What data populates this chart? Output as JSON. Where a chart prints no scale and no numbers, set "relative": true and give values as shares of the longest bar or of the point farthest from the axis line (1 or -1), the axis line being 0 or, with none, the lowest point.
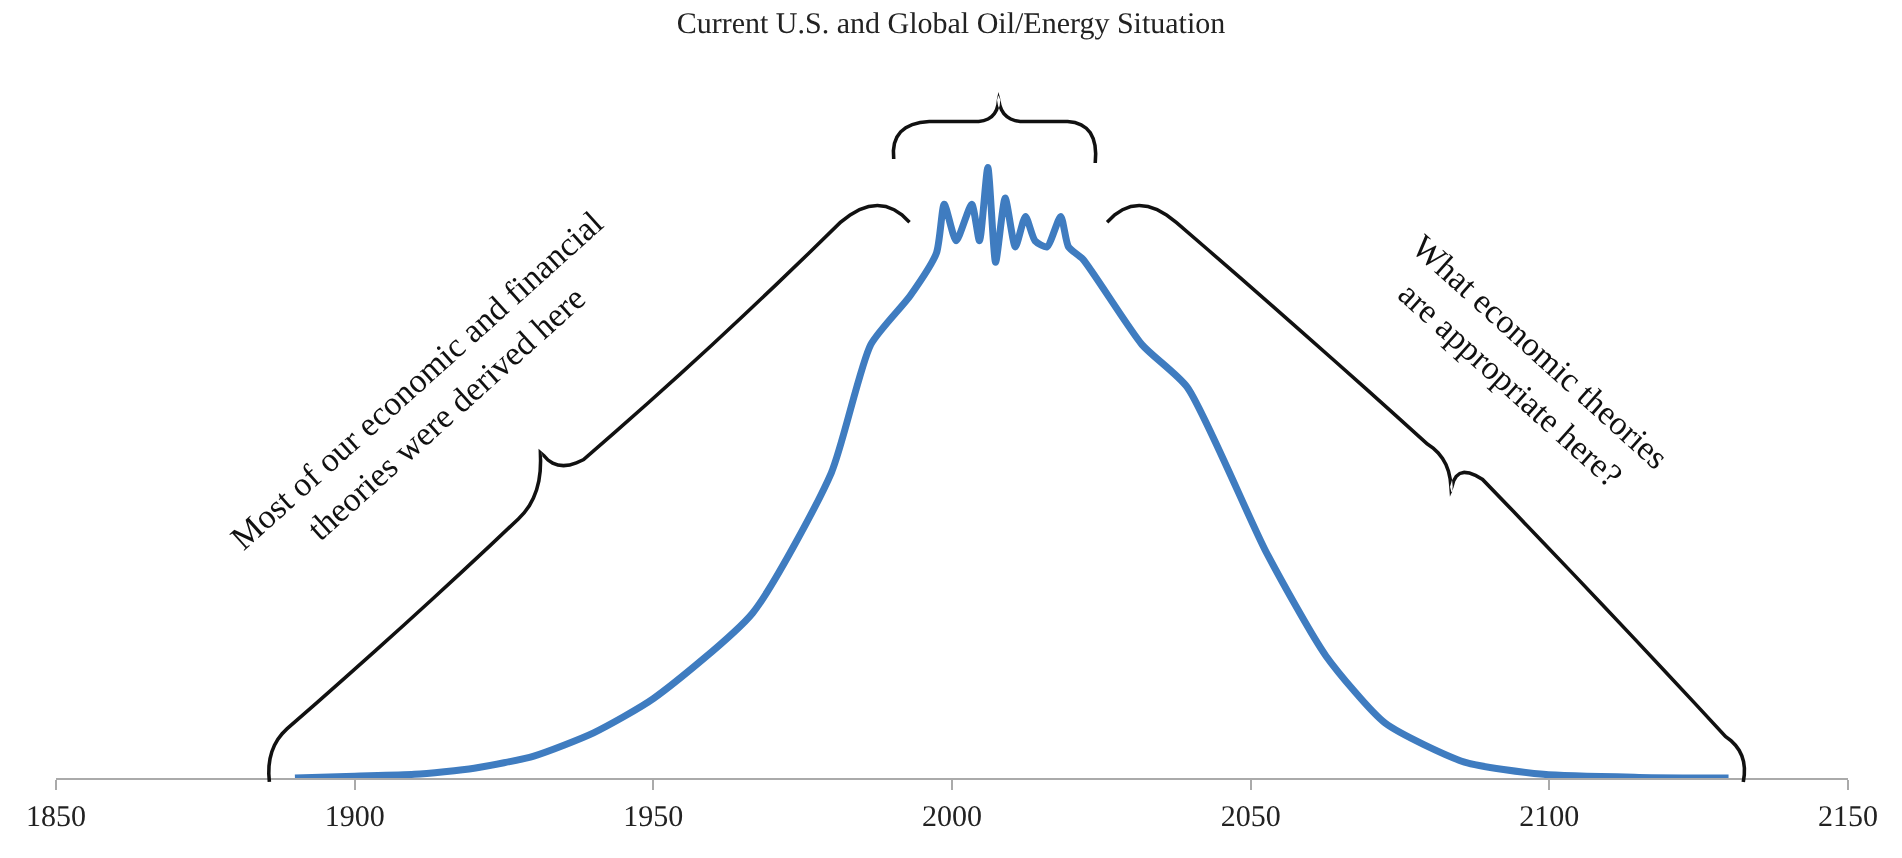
{
  "chart_data": {
    "type": "line",
    "title": "Current U.S. and Global Oil/Energy Situation",
    "relative": true,
    "color": "#3f7cc0",
    "x": [
      1890,
      1900,
      1910,
      1920,
      1930,
      1940,
      1950,
      1966.6,
      1979.8,
      1986.4,
      1993,
      1997.4,
      1998.7,
      2000.7,
      2003.3,
      2004.6,
      2006,
      2007.3,
      2008.9,
      2010.6,
      2012.3,
      2013.9,
      2015.9,
      2018.2,
      2019.5,
      2021.9,
      2031.8,
      2039.4,
      2052.6,
      2062.6,
      2072.5,
      2085.8,
      2099,
      2115,
      2130
    ],
    "values": [
      0,
      0.003,
      0.006,
      0.016,
      0.036,
      0.074,
      0.13,
      0.27,
      0.5,
      0.71,
      0.79,
      0.86,
      0.94,
      0.88,
      0.94,
      0.88,
      1.0,
      0.845,
      0.95,
      0.87,
      0.92,
      0.88,
      0.87,
      0.92,
      0.87,
      0.85,
      0.71,
      0.64,
      0.37,
      0.2,
      0.09,
      0.026,
      0.006,
      0.001,
      0
    ],
    "xlim": [
      1850,
      2150
    ],
    "xticks": [
      1850,
      1900,
      1950,
      2000,
      2050,
      2100,
      2150
    ],
    "tick_labels": "x",
    "legend": false,
    "marker": "none",
    "line_style": "solid",
    "annotations": [
      "Most of our economic and financial\ntheories were derived here",
      "What economic theories\nare appropriate here?"
    ]
  }
}
